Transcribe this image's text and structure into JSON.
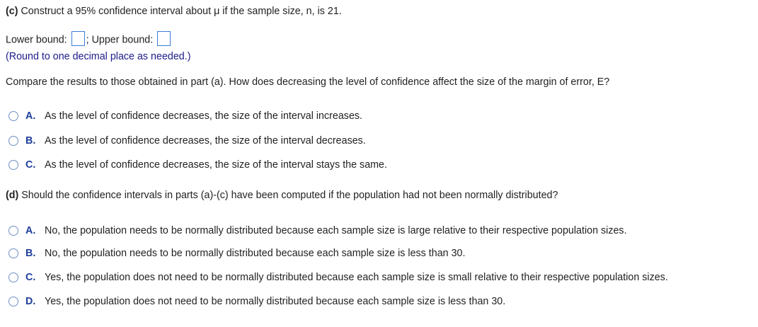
{
  "part_c": {
    "label": "(c)",
    "question": "Construct a 95% confidence interval about μ if the sample size, n, is 21.",
    "lower_label": "Lower bound:",
    "upper_label": "; Upper bound:",
    "lower_value": "",
    "upper_value": "",
    "note": "(Round to one decimal place as needed.)",
    "compare": "Compare the results to those obtained in part (a). How does decreasing the level of confidence affect the size of the margin of error, E?",
    "options": [
      {
        "letter": "A.",
        "text": "As the level of confidence decreases, the size of the interval increases."
      },
      {
        "letter": "B.",
        "text": "As the level of confidence decreases, the size of the interval decreases."
      },
      {
        "letter": "C.",
        "text": "As the level of confidence decreases, the size of the interval stays the same."
      }
    ]
  },
  "part_d": {
    "label": "(d)",
    "question": "Should the confidence intervals in parts (a)-(c) have been computed if the population had not been normally distributed?",
    "options": [
      {
        "letter": "A.",
        "text": "No, the population needs to be normally distributed because each sample size is large relative to their respective population sizes."
      },
      {
        "letter": "B.",
        "text": "No, the population needs to be normally distributed because each sample size is less than 30."
      },
      {
        "letter": "C.",
        "text": "Yes, the population does not need to be normally distributed because each sample size is small relative to their respective population sizes."
      },
      {
        "letter": "D.",
        "text": "Yes, the population does not need to be normally distributed because each sample size is less than 30."
      }
    ]
  }
}
